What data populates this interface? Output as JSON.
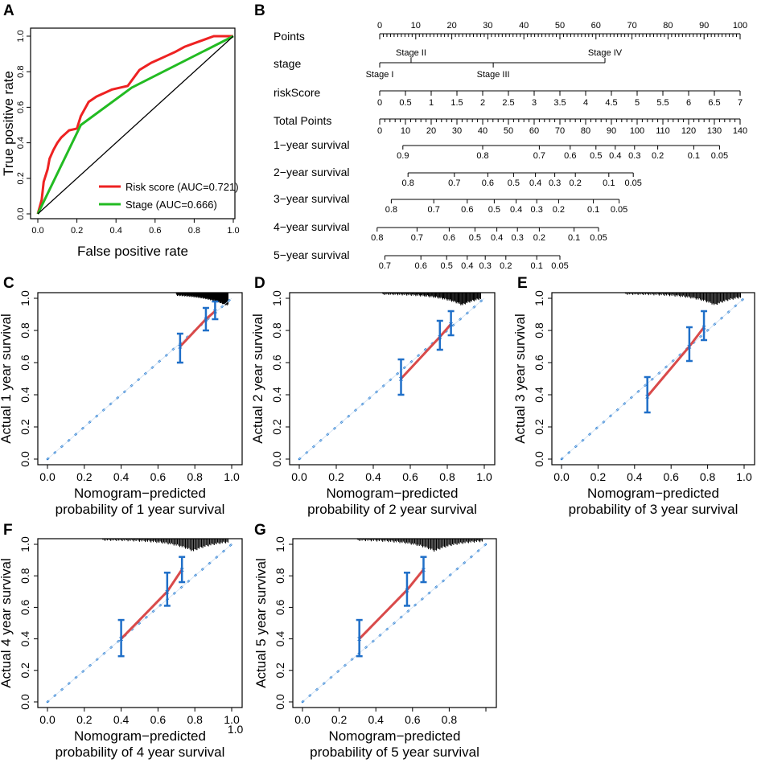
{
  "panels": {
    "A": {
      "label": "A",
      "chart_data": {
        "type": "line",
        "xlabel": "False positive rate",
        "ylabel": "True positive rate",
        "xlim": [
          0,
          1
        ],
        "ylim": [
          0,
          1
        ],
        "xticks": [
          "0.0",
          "0.2",
          "0.4",
          "0.6",
          "0.8",
          "1.0"
        ],
        "yticks": [
          "0.0",
          "0.2",
          "0.4",
          "0.6",
          "0.8",
          "1.0"
        ],
        "legend": [
          {
            "label": "Risk score (AUC=0.721)",
            "color": "#ee2222"
          },
          {
            "label": "Stage (AUC=0.666)",
            "color": "#22bb22"
          }
        ],
        "series": [
          {
            "name": "Risk score",
            "color": "#ee2222",
            "x": [
              0,
              0.02,
              0.03,
              0.05,
              0.06,
              0.08,
              0.1,
              0.12,
              0.14,
              0.16,
              0.2,
              0.22,
              0.26,
              0.3,
              0.34,
              0.38,
              0.42,
              0.46,
              0.5,
              0.52,
              0.55,
              0.58,
              0.62,
              0.66,
              0.7,
              0.75,
              0.8,
              0.85,
              0.9,
              0.95,
              1.0
            ],
            "y": [
              0,
              0.08,
              0.18,
              0.25,
              0.31,
              0.36,
              0.4,
              0.43,
              0.45,
              0.47,
              0.48,
              0.55,
              0.63,
              0.66,
              0.68,
              0.7,
              0.71,
              0.72,
              0.78,
              0.81,
              0.83,
              0.85,
              0.87,
              0.89,
              0.91,
              0.94,
              0.96,
              0.98,
              1.0,
              1.0,
              1.0
            ]
          },
          {
            "name": "Stage",
            "color": "#22bb22",
            "x": [
              0,
              0.22,
              0.48,
              1.0
            ],
            "y": [
              0,
              0.5,
              0.71,
              1.0
            ]
          },
          {
            "name": "Reference",
            "color": "#000000",
            "x": [
              0,
              1
            ],
            "y": [
              0,
              1
            ]
          }
        ]
      }
    },
    "B": {
      "label": "B",
      "chart_data": {
        "type": "nomogram",
        "rows": [
          {
            "name": "Points",
            "ticks": [
              "0",
              "10",
              "20",
              "30",
              "40",
              "50",
              "60",
              "70",
              "80",
              "90",
              "100"
            ]
          },
          {
            "name": "stage",
            "categories": [
              "Stage I",
              "Stage II",
              "Stage III",
              "Stage IV"
            ],
            "points": [
              0,
              8.7,
              31.5,
              62.5
            ]
          },
          {
            "name": "riskScore",
            "ticks": [
              "0",
              "0.5",
              "1",
              "1.5",
              "2",
              "2.5",
              "3",
              "3.5",
              "4",
              "4.5",
              "5",
              "5.5",
              "6",
              "6.5",
              "7"
            ]
          },
          {
            "name": "Total Points",
            "ticks": [
              "0",
              "10",
              "20",
              "30",
              "40",
              "50",
              "60",
              "70",
              "80",
              "90",
              "100",
              "110",
              "120",
              "130",
              "140"
            ]
          },
          {
            "name": "1−year survival",
            "ticks": [
              "0.9",
              "0.8",
              "0.7",
              "0.6",
              "0.5",
              "0.4",
              "0.3",
              "0.2",
              "0.1",
              "0.05"
            ],
            "positions": [
              9,
              40,
              62,
              74,
              84,
              91.5,
              99,
              108,
              122,
              132
            ]
          },
          {
            "name": "2−year survival",
            "ticks": [
              "0.8",
              "0.7",
              "0.6",
              "0.5",
              "0.4",
              "0.3",
              "0.2",
              "0.1",
              "0.05"
            ],
            "positions": [
              11,
              29,
              42,
              52,
              60.5,
              68,
              76,
              89,
              98.5
            ]
          },
          {
            "name": "3−year survival",
            "ticks": [
              "0.8",
              "0.7",
              "0.6",
              "0.5",
              "0.4",
              "0.3",
              "0.2",
              "0.1",
              "0.05"
            ],
            "positions": [
              4.5,
              21,
              34,
              44.5,
              53,
              61,
              69.5,
              83,
              93
            ]
          },
          {
            "name": "4−year survival",
            "ticks": [
              "0.8",
              "0.7",
              "0.6",
              "0.5",
              "0.4",
              "0.3",
              "0.2",
              "0.1",
              "0.05"
            ],
            "positions": [
              -1,
              14.5,
              27,
              37,
              45.5,
              53.5,
              62,
              75.5,
              85
            ]
          },
          {
            "name": "5−year survival",
            "ticks": [
              "0.7",
              "0.6",
              "0.5",
              "0.4",
              "0.3",
              "0.2",
              "0.1",
              "0.05"
            ],
            "positions": [
              2,
              16,
              26,
              34,
              41,
              49,
              61,
              70
            ]
          }
        ]
      }
    },
    "C": {
      "label": "C",
      "chart_data": {
        "type": "scatter",
        "year": 1,
        "xlabel": "Nomogram−predicted",
        "xlabel2": "probability of 1 year survival",
        "ylabel": "Actual 1 year survival",
        "xticks": [
          "0.0",
          "0.2",
          "0.4",
          "0.6",
          "0.8",
          "1.0"
        ],
        "yticks": [
          "0.0",
          "0.2",
          "0.4",
          "0.6",
          "0.8",
          "1.0"
        ],
        "x": [
          0.72,
          0.86,
          0.91
        ],
        "y": [
          0.7,
          0.87,
          0.92
        ],
        "lower": [
          0.6,
          0.8,
          0.87
        ],
        "upper": [
          0.78,
          0.94,
          0.98
        ],
        "rug_start": 0.7
      }
    },
    "D": {
      "label": "D",
      "chart_data": {
        "type": "scatter",
        "year": 2,
        "xlabel": "Nomogram−predicted",
        "xlabel2": "probability of 2 year survival",
        "ylabel": "Actual 2 year survival",
        "xticks": [
          "0.0",
          "0.2",
          "0.4",
          "0.6",
          "0.8",
          "1.0"
        ],
        "yticks": [
          "0.0",
          "0.2",
          "0.4",
          "0.6",
          "0.8",
          "1.0"
        ],
        "x": [
          0.55,
          0.76,
          0.82
        ],
        "y": [
          0.5,
          0.76,
          0.84
        ],
        "lower": [
          0.4,
          0.68,
          0.77
        ],
        "upper": [
          0.62,
          0.86,
          0.92
        ],
        "rug_start": 0.45
      }
    },
    "E": {
      "label": "E",
      "chart_data": {
        "type": "scatter",
        "year": 3,
        "xlabel": "Nomogram−predicted",
        "xlabel2": "probability of 3 year survival",
        "ylabel": "Actual 3 year survival",
        "xticks": [
          "0.0",
          "0.2",
          "0.4",
          "0.6",
          "0.8",
          "1.0"
        ],
        "yticks": [
          "0.0",
          "0.2",
          "0.4",
          "0.6",
          "0.8",
          "1.0"
        ],
        "x": [
          0.47,
          0.7,
          0.78
        ],
        "y": [
          0.39,
          0.7,
          0.82
        ],
        "lower": [
          0.29,
          0.61,
          0.74
        ],
        "upper": [
          0.51,
          0.82,
          0.92
        ],
        "rug_start": 0.35
      }
    },
    "F": {
      "label": "F",
      "chart_data": {
        "type": "scatter",
        "year": 4,
        "xlabel": "Nomogram−predicted",
        "xlabel2": "probability of 4 year survival",
        "ylabel": "Actual 4 year survival",
        "xticks": [
          "0.0",
          "0.2",
          "0.4",
          "0.6",
          "0.8",
          "1.0"
        ],
        "yticks": [
          "0.0",
          "0.2",
          "0.4",
          "0.6",
          "0.8",
          "1.0"
        ],
        "extra_tick": "1.0",
        "x": [
          0.4,
          0.65,
          0.73
        ],
        "y": [
          0.4,
          0.7,
          0.84
        ],
        "lower": [
          0.29,
          0.61,
          0.76
        ],
        "upper": [
          0.52,
          0.82,
          0.92
        ],
        "rug_start": 0.3
      }
    },
    "G": {
      "label": "G",
      "chart_data": {
        "type": "scatter",
        "year": 5,
        "xlabel": "Nomogram−predicted",
        "xlabel2": "probability of 5 year survival",
        "ylabel": "Actual 5 year survival",
        "xticks": [
          "0.0",
          "0.2",
          "0.4",
          "0.6",
          "0.8"
        ],
        "yticks": [
          "0.0",
          "0.2",
          "0.4",
          "0.6",
          "0.8",
          "1.0"
        ],
        "x": [
          0.31,
          0.57,
          0.66
        ],
        "y": [
          0.4,
          0.71,
          0.84
        ],
        "lower": [
          0.29,
          0.61,
          0.76
        ],
        "upper": [
          0.52,
          0.82,
          0.92
        ],
        "rug_start": 0.3
      }
    }
  },
  "colors": {
    "calib_line": "#d94a4a",
    "calib_marker": "#1f6fc8",
    "ideal": "#2a7fd4",
    "roc_risk": "#ee2222",
    "roc_stage": "#22bb22"
  }
}
